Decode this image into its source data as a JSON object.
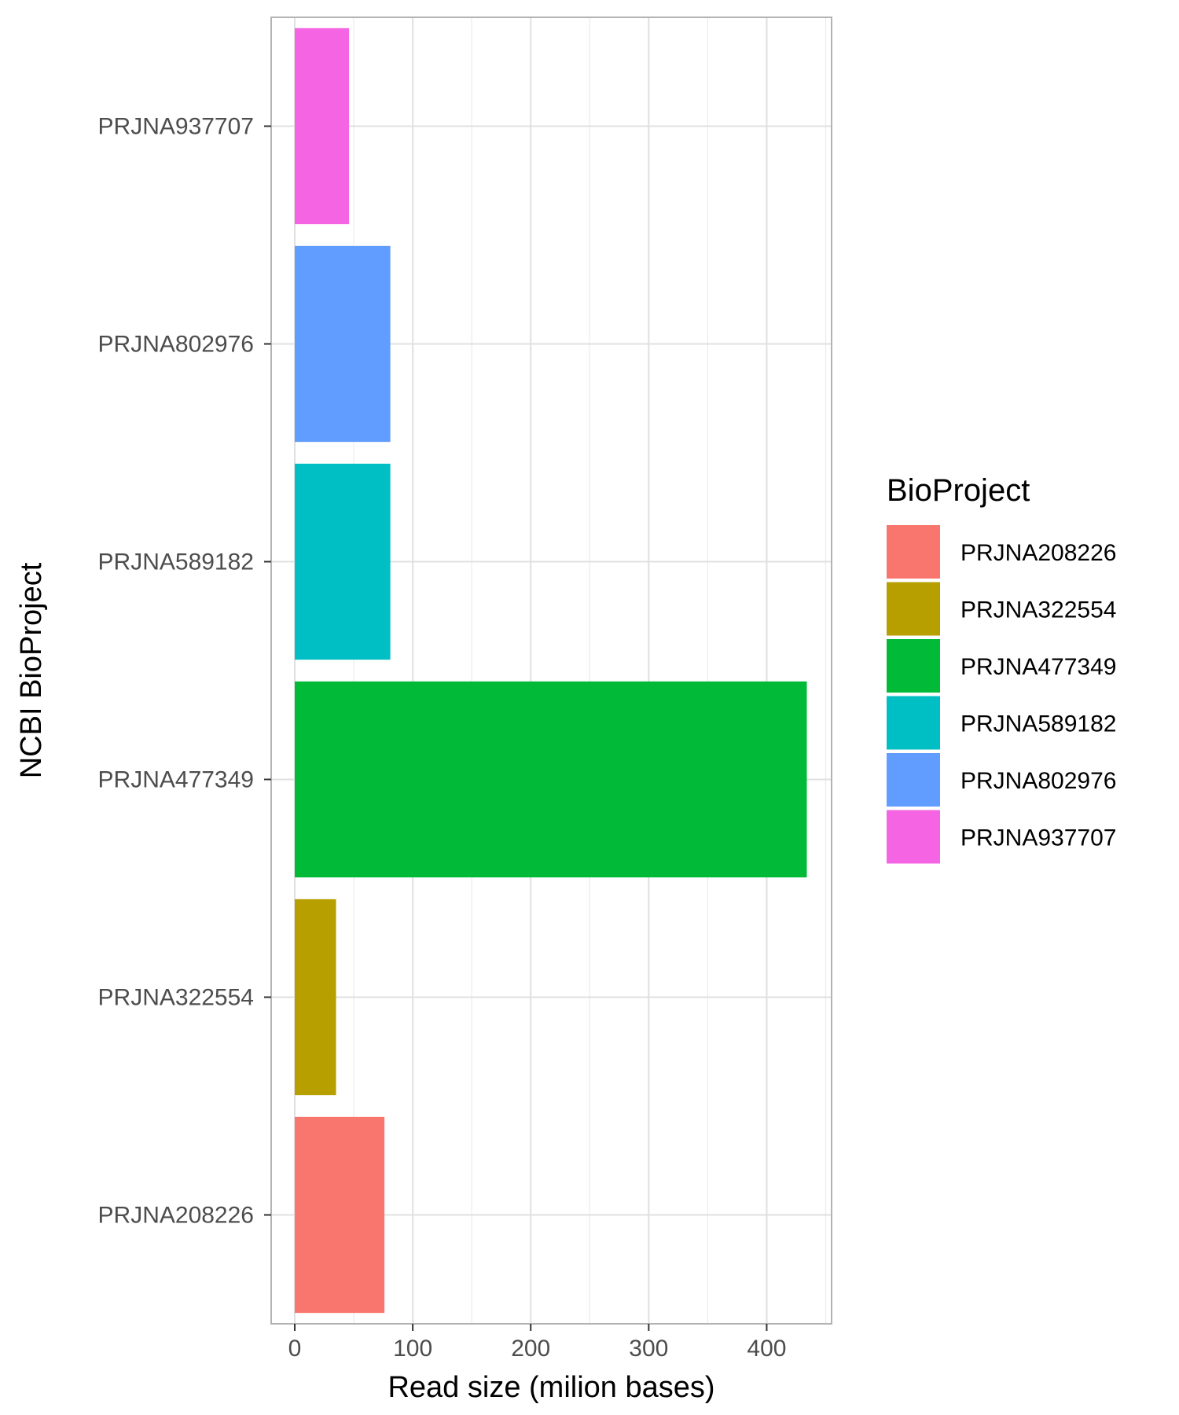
{
  "chart_data": {
    "type": "bar",
    "orientation": "horizontal",
    "xlabel": "Read size (milion bases)",
    "ylabel": "NCBI BioProject",
    "xlim": [
      -20,
      455
    ],
    "x_ticks": [
      0,
      100,
      200,
      300,
      400
    ],
    "grid": true,
    "categories": [
      "PRJNA208226",
      "PRJNA322554",
      "PRJNA477349",
      "PRJNA589182",
      "PRJNA802976",
      "PRJNA937707"
    ],
    "values": [
      76,
      35,
      434,
      81,
      81,
      46
    ],
    "colors": [
      "#F8766D",
      "#B79F00",
      "#00BA38",
      "#00BFC4",
      "#619CFF",
      "#F564E3"
    ],
    "legend": {
      "title": "BioProject",
      "placement": "right",
      "entries": [
        "PRJNA208226",
        "PRJNA322554",
        "PRJNA477349",
        "PRJNA589182",
        "PRJNA802976",
        "PRJNA937707"
      ]
    }
  }
}
